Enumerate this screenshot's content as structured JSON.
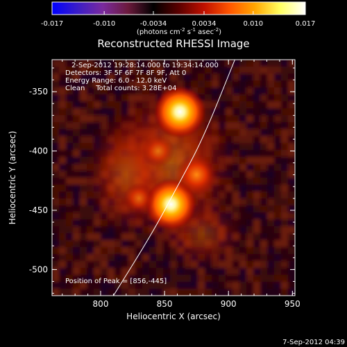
{
  "colorbar": {
    "tick_labels": [
      "-0.017",
      "-0.010",
      "-0.0034",
      "0.0034",
      "0.010",
      "0.017"
    ],
    "tick_values": [
      -0.017,
      -0.01,
      -0.0034,
      0.0034,
      0.01,
      0.017
    ],
    "range": [
      -0.017,
      0.017
    ],
    "units_main": "(photons cm",
    "units_exp1": "-2",
    "units_mid": " s",
    "units_exp2": "-1",
    "units_tail": " asec",
    "units_exp3": "-2",
    "units_close": ")",
    "gradient_colors": [
      "#0000ff",
      "#3a1dc8",
      "#7a2a9e",
      "#6b1a3c",
      "#000000",
      "#5a0000",
      "#c01000",
      "#ff5500",
      "#ffa600",
      "#ffff60",
      "#ffffff"
    ]
  },
  "plot": {
    "title": "Reconstructed RHESSI Image",
    "xlabel": "Heliocentric X (arcsec)",
    "ylabel": "Heliocentric Y (arcsec)",
    "x_ticks": [
      800,
      850,
      900,
      950
    ],
    "x_tick_labels": [
      "800",
      "850",
      "900",
      "950"
    ],
    "y_ticks": [
      -350,
      -400,
      -450,
      -500
    ],
    "y_tick_labels": [
      "-350",
      "-400",
      "-450",
      "-500"
    ],
    "xlim": [
      762,
      952
    ],
    "ylim": [
      -522,
      -323
    ],
    "info_lines": [
      "2-Sep-2012 19:28:14.000 to 19:34:14.000",
      "Detectors: 3F 5F 6F 7F 8F 9F, Att 0",
      "Energy Range: 6.0 - 12.0 keV",
      "Clean     Total counts: 3.28E+04"
    ],
    "peak_label": "Position of Peak = [856,-445]",
    "sources": [
      {
        "x": 862,
        "y": -367,
        "value": 0.017
      },
      {
        "x": 855,
        "y": -445,
        "value": 0.0165
      },
      {
        "x": 875,
        "y": -420,
        "value": 0.011
      },
      {
        "x": 845,
        "y": -400,
        "value": 0.006
      },
      {
        "x": 830,
        "y": -440,
        "value": 0.005
      }
    ],
    "limb_points": [
      [
        810,
        -522
      ],
      [
        840,
        -470
      ],
      [
        860,
        -430
      ],
      [
        880,
        -390
      ],
      [
        905,
        -323
      ]
    ]
  },
  "footer": {
    "timestamp": "7-Sep-2012 04:39"
  }
}
